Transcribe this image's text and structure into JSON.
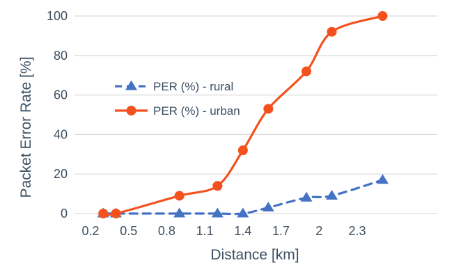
{
  "chart_data": {
    "type": "line",
    "xlabel": "Distance [km]",
    "ylabel": "Packet Error Rate [%]",
    "xlim": [
      0.2,
      2.55
    ],
    "ylim": [
      0,
      100
    ],
    "x_ticks": [
      0.2,
      0.5,
      0.8,
      1.1,
      1.4,
      1.7,
      2,
      2.3
    ],
    "x_tick_labels": [
      "0.2",
      "0.5",
      "0.8",
      "1.1",
      "1.4",
      "1.7",
      "2",
      "2.3"
    ],
    "y_ticks": [
      0,
      20,
      40,
      60,
      80,
      100
    ],
    "y_tick_labels": [
      "0",
      "20",
      "40",
      "60",
      "80",
      "100"
    ],
    "grid": "horizontal",
    "legend_position": "center-left",
    "series": [
      {
        "name": "PER (%) - rural",
        "color": "#4472c4",
        "line_style": "dashed",
        "marker": "triangle",
        "x": [
          0.3,
          0.4,
          0.9,
          1.2,
          1.4,
          1.6,
          1.9,
          2.1,
          2.5
        ],
        "y": [
          0,
          0,
          0,
          0,
          0,
          3,
          8,
          9,
          17
        ]
      },
      {
        "name": "PER (%) - urban",
        "color": "#f4511e",
        "line_style": "solid",
        "marker": "circle",
        "x": [
          0.3,
          0.4,
          0.9,
          1.2,
          1.4,
          1.6,
          1.9,
          2.1,
          2.5
        ],
        "y": [
          0,
          0,
          9,
          14,
          32,
          53,
          72,
          92,
          100
        ]
      }
    ]
  }
}
